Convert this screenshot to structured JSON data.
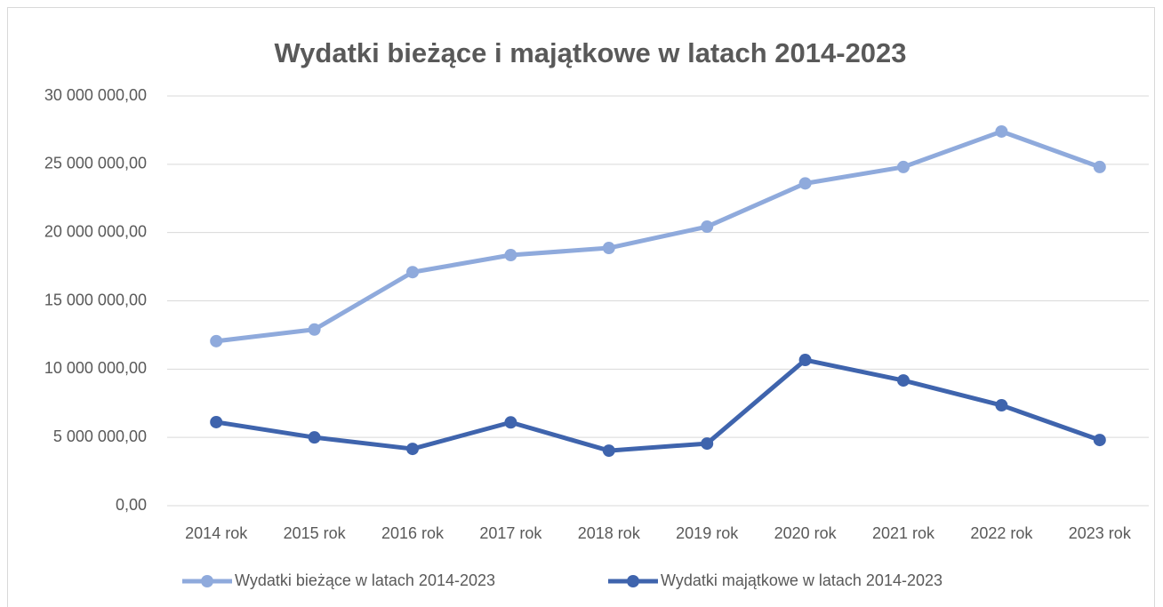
{
  "chart_data": {
    "type": "line",
    "title": "Wydatki bieżące i majątkowe w latach 2014-2023",
    "categories": [
      "2014 rok",
      "2015 rok",
      "2016 rok",
      "2017 rok",
      "2018 rok",
      "2019 rok",
      "2020 rok",
      "2021 rok",
      "2022 rok",
      "2023 rok"
    ],
    "series": [
      {
        "name": "Wydatki bieżące w latach 2014-2023",
        "color": "#8faadc",
        "values": [
          12050000,
          12900000,
          17100000,
          18350000,
          18870000,
          20430000,
          23600000,
          24800000,
          27400000,
          24800000
        ]
      },
      {
        "name": "Wydatki majątkowe w latach 2014-2023",
        "color": "#3f64ad",
        "values": [
          6120000,
          5000000,
          4160000,
          6100000,
          4030000,
          4550000,
          10670000,
          9170000,
          7350000,
          4810000
        ]
      }
    ],
    "ylim": [
      0,
      30000000
    ],
    "yticks": [
      {
        "value": 0,
        "label": "0,00"
      },
      {
        "value": 5000000,
        "label": "5 000 000,00"
      },
      {
        "value": 10000000,
        "label": "10 000 000,00"
      },
      {
        "value": 15000000,
        "label": "15 000 000,00"
      },
      {
        "value": 20000000,
        "label": "20 000 000,00"
      },
      {
        "value": 25000000,
        "label": "25 000 000,00"
      },
      {
        "value": 30000000,
        "label": "30 000 000,00"
      }
    ],
    "grid": true,
    "legend": "bottom"
  }
}
